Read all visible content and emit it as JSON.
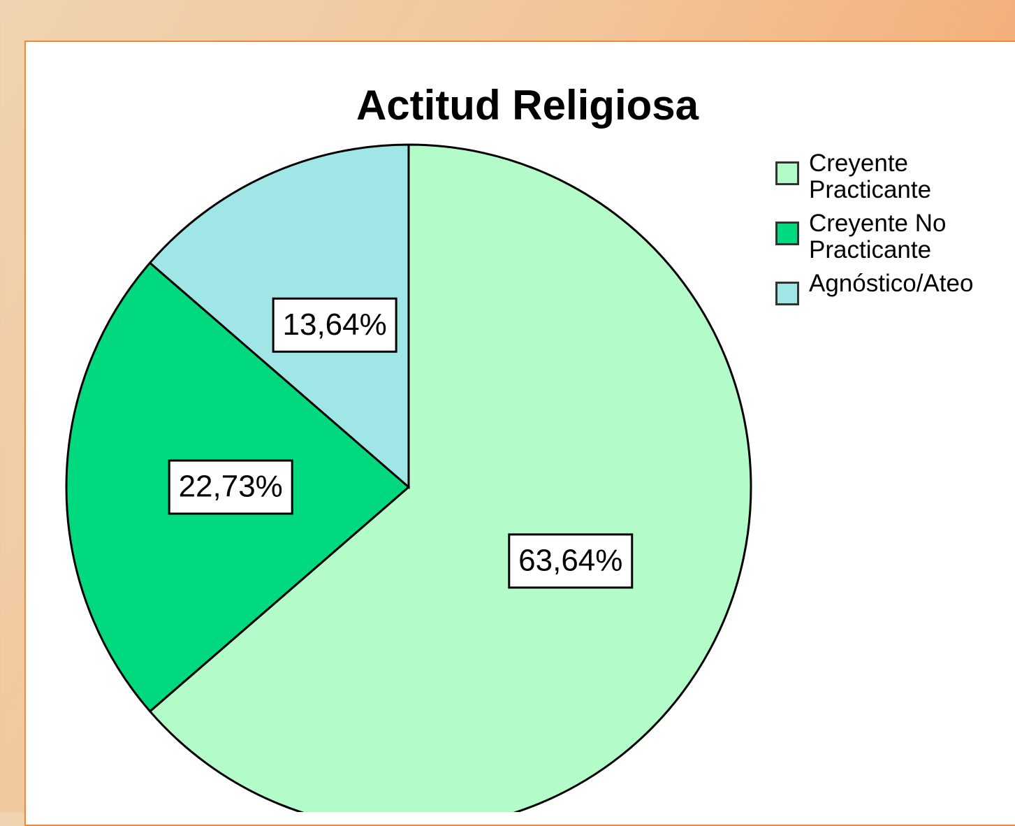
{
  "chart_data": {
    "type": "pie",
    "title": "Actitud Religiosa",
    "categories": [
      "Creyente Practicante",
      "Creyente No Practicante",
      "Agnóstico/Ateo"
    ],
    "values": [
      63.64,
      22.73,
      13.64
    ],
    "value_labels": [
      "63,64%",
      "22,73%",
      "13,64%"
    ],
    "colors": [
      "#b3fbc8",
      "#00d97e",
      "#a0e6e6"
    ],
    "legend": "top-right"
  }
}
